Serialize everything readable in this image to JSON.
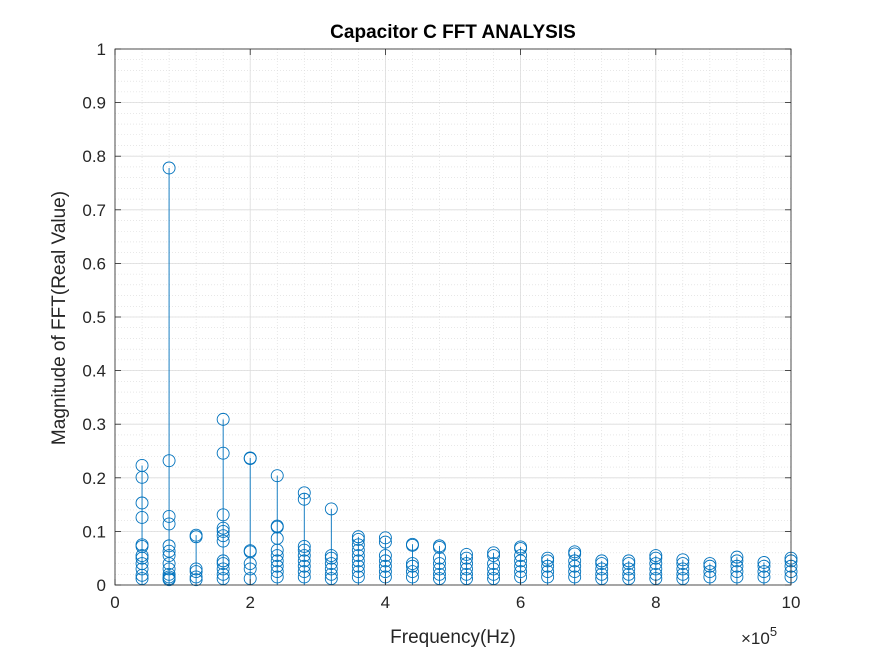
{
  "chart_data": {
    "type": "stem",
    "title": "Capacitor C FFT ANALYSIS",
    "xlabel": "Frequency(Hz)",
    "ylabel": "Magnitude of FFT(Real Value)",
    "x_multiplier_label": "×10",
    "x_multiplier_exponent": "5",
    "xlim": [
      0,
      10
    ],
    "ylim": [
      0,
      1
    ],
    "x_ticks": [
      "0",
      "2",
      "4",
      "6",
      "8",
      "10"
    ],
    "y_ticks": [
      "0",
      "0.1",
      "0.2",
      "0.3",
      "0.4",
      "0.5",
      "0.6",
      "0.7",
      "0.8",
      "0.9",
      "1"
    ],
    "grid": true,
    "minor_grid": true,
    "color": "#0072BD",
    "series": [
      {
        "x": 0.4,
        "values": [
          0.223,
          0.201,
          0.153,
          0.126,
          0.075,
          0.072,
          0.055,
          0.05,
          0.04,
          0.03,
          0.018,
          0.012
        ]
      },
      {
        "x": 0.8,
        "values": [
          0.778,
          0.232,
          0.128,
          0.114,
          0.073,
          0.063,
          0.055,
          0.04,
          0.03,
          0.02,
          0.015,
          0.012,
          0.01
        ]
      },
      {
        "x": 1.2,
        "values": [
          0.093,
          0.09,
          0.03,
          0.025,
          0.015,
          0.01
        ]
      },
      {
        "x": 1.6,
        "values": [
          0.309,
          0.246,
          0.131,
          0.106,
          0.1,
          0.092,
          0.082,
          0.045,
          0.04,
          0.03,
          0.02,
          0.012
        ]
      },
      {
        "x": 2.0,
        "values": [
          0.237,
          0.236,
          0.064,
          0.062,
          0.04,
          0.03,
          0.012
        ]
      },
      {
        "x": 2.4,
        "values": [
          0.204,
          0.11,
          0.108,
          0.087,
          0.065,
          0.055,
          0.045,
          0.035,
          0.025,
          0.015
        ]
      },
      {
        "x": 2.8,
        "values": [
          0.172,
          0.16,
          0.072,
          0.065,
          0.055,
          0.045,
          0.035,
          0.025,
          0.015
        ]
      },
      {
        "x": 3.2,
        "values": [
          0.142,
          0.055,
          0.05,
          0.04,
          0.03,
          0.02,
          0.012
        ]
      },
      {
        "x": 3.6,
        "values": [
          0.09,
          0.085,
          0.075,
          0.065,
          0.055,
          0.045,
          0.035,
          0.025,
          0.015
        ]
      },
      {
        "x": 4.0,
        "values": [
          0.088,
          0.08,
          0.055,
          0.045,
          0.035,
          0.025,
          0.015
        ]
      },
      {
        "x": 4.4,
        "values": [
          0.076,
          0.074,
          0.04,
          0.035,
          0.025,
          0.015
        ]
      },
      {
        "x": 4.8,
        "values": [
          0.073,
          0.07,
          0.05,
          0.04,
          0.03,
          0.02,
          0.012
        ]
      },
      {
        "x": 5.2,
        "values": [
          0.057,
          0.05,
          0.04,
          0.03,
          0.02,
          0.012
        ]
      },
      {
        "x": 5.6,
        "values": [
          0.06,
          0.055,
          0.04,
          0.03,
          0.02,
          0.012
        ]
      },
      {
        "x": 6.0,
        "values": [
          0.071,
          0.068,
          0.055,
          0.045,
          0.035,
          0.025,
          0.015
        ]
      },
      {
        "x": 6.4,
        "values": [
          0.05,
          0.045,
          0.035,
          0.025,
          0.015
        ]
      },
      {
        "x": 6.8,
        "values": [
          0.062,
          0.058,
          0.045,
          0.035,
          0.025,
          0.015
        ]
      },
      {
        "x": 7.2,
        "values": [
          0.045,
          0.04,
          0.03,
          0.02,
          0.012
        ]
      },
      {
        "x": 7.6,
        "values": [
          0.045,
          0.04,
          0.03,
          0.02,
          0.012
        ]
      },
      {
        "x": 8.0,
        "values": [
          0.055,
          0.05,
          0.04,
          0.03,
          0.02,
          0.012
        ]
      },
      {
        "x": 8.4,
        "values": [
          0.047,
          0.04,
          0.03,
          0.02,
          0.012
        ]
      },
      {
        "x": 8.8,
        "values": [
          0.04,
          0.035,
          0.025,
          0.015
        ]
      },
      {
        "x": 9.2,
        "values": [
          0.052,
          0.045,
          0.035,
          0.025,
          0.015
        ]
      },
      {
        "x": 9.6,
        "values": [
          0.042,
          0.035,
          0.025,
          0.015
        ]
      },
      {
        "x": 10.0,
        "values": [
          0.05,
          0.045,
          0.035,
          0.025,
          0.015
        ]
      }
    ]
  }
}
